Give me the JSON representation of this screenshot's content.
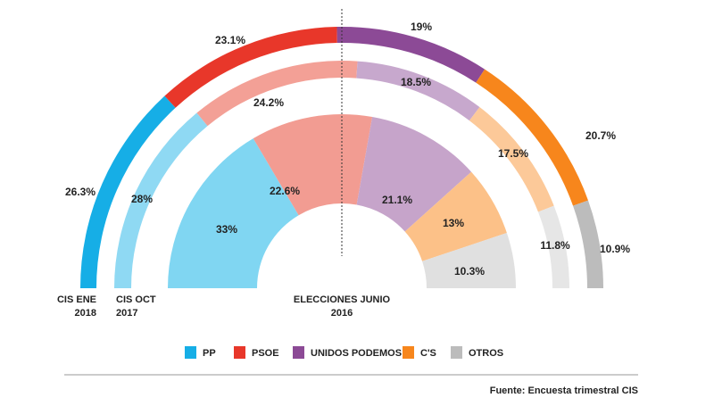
{
  "chart_data": {
    "type": "pie",
    "subtype": "concentric semicircle donut",
    "categories": [
      "PP",
      "PSOE",
      "UNIDOS PODEMOS",
      "C'S",
      "OTROS"
    ],
    "colors": {
      "PP": [
        "#16aee6",
        "#8fd9f3",
        "#80d6f2"
      ],
      "PSOE": [
        "#e8372a",
        "#f3a096",
        "#f29c92"
      ],
      "UNIDOS PODEMOS": [
        "#8c4a96",
        "#c7a8cd",
        "#c6a4ca"
      ],
      "C'S": [
        "#f7861c",
        "#fcc999",
        "#fcc188"
      ],
      "OTROS": [
        "#bcbcbc",
        "#e6e6e6",
        "#e0e0e0"
      ]
    },
    "series": [
      {
        "name": "CIS ENE 2018",
        "label_lines": [
          "CIS ENE",
          "2018"
        ],
        "values": [
          26.3,
          23.1,
          19,
          20.7,
          10.9
        ],
        "labels": [
          "26.3%",
          "23.1%",
          "19%",
          "20.7%",
          "10.9%"
        ]
      },
      {
        "name": "CIS OCT 2017",
        "label_lines": [
          "CIS OCT",
          "2017"
        ],
        "values": [
          28,
          24.2,
          18.5,
          17.5,
          11.8
        ],
        "labels": [
          "28%",
          "24.2%",
          "18.5%",
          "17.5%",
          "11.8%"
        ]
      },
      {
        "name": "ELECCIONES JUNIO 2016",
        "label_lines": [
          "ELECCIONES JUNIO",
          "2016"
        ],
        "values": [
          33,
          22.6,
          21.1,
          13,
          10.3
        ],
        "labels": [
          "33%",
          "22.6%",
          "21.1%",
          "13%",
          "10.3%"
        ]
      }
    ],
    "legend": {
      "placement": "bottom",
      "items": [
        "PP",
        "PSOE",
        "UNIDOS PODEMOS",
        "C'S",
        "OTROS"
      ]
    },
    "source": "Fuente: Encuesta trimestral CIS",
    "unit": "%"
  }
}
